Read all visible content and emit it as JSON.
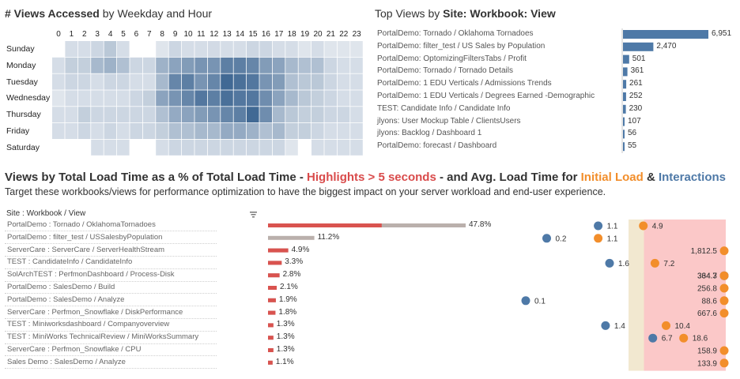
{
  "heatmap": {
    "title_bold": "# Views Accessed",
    "title_rest": " by Weekday and Hour",
    "hours": [
      "0",
      "1",
      "2",
      "3",
      "4",
      "5",
      "6",
      "7",
      "8",
      "9",
      "10",
      "11",
      "12",
      "13",
      "14",
      "15",
      "16",
      "17",
      "18",
      "19",
      "20",
      "21",
      "22",
      "23"
    ],
    "days": [
      "Sunday",
      "Monday",
      "Tuesday",
      "Wednesday",
      "Thursday",
      "Friday",
      "Saturday"
    ]
  },
  "topviews": {
    "title_plain": "Top Views by ",
    "title_bold": "Site: Workbook: View"
  },
  "bottom": {
    "title_part1": "Views by Total Load Time as a % of Total Load Time - ",
    "title_highlight": "Highlights > 5 seconds",
    "title_part2": " - and Avg. Load Time for ",
    "title_initial": "Initial Load",
    "title_amp": " & ",
    "title_interactions": "Interactions",
    "subtitle": "Target these workbooks/views for performance optimization to have the biggest impact on your server workload and end-user experience.",
    "column_header": "Site : Workbook / View",
    "sort_icon": "sort-icon"
  },
  "colors": {
    "heat_dark": "#2e5a8a",
    "top_bar": "#4e79a7",
    "red_bar": "#d9534f",
    "grey_bar": "#bab0ac",
    "initial_load": "#f28e2b",
    "interactions": "#4e79a7",
    "highlight_text": "#d94b4b",
    "red_band": "#fbc8c8",
    "tan_band": "#f2e8d0"
  },
  "chart_data": [
    {
      "type": "heatmap",
      "title": "# Views Accessed by Weekday and Hour",
      "x": [
        "0",
        "1",
        "2",
        "3",
        "4",
        "5",
        "6",
        "7",
        "8",
        "9",
        "10",
        "11",
        "12",
        "13",
        "14",
        "15",
        "16",
        "17",
        "18",
        "19",
        "20",
        "21",
        "22",
        "23"
      ],
      "y": [
        "Sunday",
        "Monday",
        "Tuesday",
        "Wednesday",
        "Thursday",
        "Friday",
        "Saturday"
      ],
      "values": [
        [
          0,
          10,
          10,
          15,
          25,
          10,
          0,
          0,
          5,
          15,
          10,
          10,
          12,
          10,
          10,
          15,
          15,
          10,
          10,
          5,
          10,
          5,
          5,
          5
        ],
        [
          10,
          20,
          20,
          35,
          40,
          30,
          15,
          15,
          40,
          50,
          55,
          60,
          60,
          75,
          75,
          70,
          55,
          50,
          35,
          30,
          30,
          15,
          10,
          10
        ],
        [
          10,
          15,
          15,
          10,
          15,
          15,
          10,
          10,
          35,
          70,
          75,
          60,
          70,
          90,
          85,
          80,
          60,
          55,
          30,
          25,
          25,
          15,
          10,
          10
        ],
        [
          5,
          10,
          10,
          10,
          10,
          10,
          15,
          20,
          50,
          60,
          70,
          80,
          75,
          85,
          80,
          80,
          65,
          50,
          35,
          25,
          20,
          15,
          10,
          10
        ],
        [
          10,
          10,
          20,
          15,
          15,
          15,
          15,
          15,
          30,
          45,
          50,
          55,
          60,
          70,
          75,
          90,
          65,
          35,
          25,
          20,
          20,
          15,
          15,
          10
        ],
        [
          10,
          10,
          15,
          10,
          15,
          10,
          15,
          15,
          20,
          30,
          30,
          35,
          35,
          45,
          45,
          40,
          30,
          35,
          20,
          20,
          15,
          10,
          10,
          10
        ],
        [
          0,
          0,
          0,
          10,
          10,
          10,
          0,
          0,
          10,
          15,
          15,
          15,
          15,
          15,
          15,
          15,
          15,
          15,
          5,
          0,
          10,
          10,
          10,
          10
        ]
      ]
    },
    {
      "type": "bar",
      "title": "Top Views by Site: Workbook: View",
      "categories": [
        "PortalDemo: Tornado / Oklahoma Tornadoes",
        "PortalDemo: filter_test / US Sales by Population",
        "PortalDemo: OptomizingFiltersTabs / Profit",
        "PortalDemo: Tornado / Tornado Details",
        "PortalDemo: 1 EDU Verticals / Admissions Trends",
        "PortalDemo: 1 EDU Verticals / Degrees Earned -Demographic",
        "TEST: Candidate Info / Candidate Info",
        "jlyons: User Mockup Table / ClientsUsers",
        "jlyons: Backlog / Dashboard 1",
        "PortalDemo: forecast / Dashboard"
      ],
      "values": [
        6951,
        2470,
        501,
        361,
        261,
        252,
        230,
        107,
        56,
        55
      ],
      "labels": [
        "6,951",
        "2,470",
        "501",
        "361",
        "261",
        "252",
        "230",
        "107",
        "56",
        "55"
      ]
    },
    {
      "type": "bar",
      "title": "Views by Total Load Time as a % of Total Load Time",
      "categories": [
        "PortalDemo : Tornado / OklahomaTornadoes",
        "PortalDemo : filter_test / USSalesbyPopulation",
        "ServerCare : ServerCare / ServerHealthStream",
        "TEST : CandidateInfo / CandidateInfo",
        "SolArchTEST : PerfmonDashboard / Process-Disk",
        "PortalDemo : SalesDemo / Build",
        "PortalDemo : SalesDemo / Analyze",
        "ServerCare : Perfmon_Snowflake / DiskPerformance",
        "TEST : Miniworksdashboard / Companyoverview",
        "TEST : MiniWorks TechnicalReview / MiniWorksSummary",
        "ServerCare : Perfmon_Snowflake / CPU",
        "Sales Demo : SalesDemo / Analyze"
      ],
      "values": [
        47.8,
        11.2,
        4.9,
        3.3,
        2.8,
        2.1,
        1.9,
        1.8,
        1.3,
        1.3,
        1.3,
        1.1
      ],
      "highlight_portion": [
        27.5,
        0,
        4.9,
        3.3,
        2.8,
        2.1,
        1.9,
        1.8,
        1.3,
        1.3,
        1.3,
        1.1
      ],
      "labels": [
        "47.8%",
        "11.2%",
        "4.9%",
        "3.3%",
        "2.8%",
        "2.1%",
        "1.9%",
        "1.8%",
        "1.3%",
        "1.3%",
        "1.3%",
        "1.1%"
      ]
    },
    {
      "type": "scatter",
      "title": "Avg. Load Time for Initial Load & Interactions",
      "series": [
        {
          "name": "Initial Load",
          "values": [
            4.9,
            1.1,
            1812.5,
            7.2,
            334.3,
            256.8,
            88.6,
            667.6,
            10.4,
            18.6,
            158.9,
            133.9
          ],
          "labels": [
            "4.9",
            "1.1",
            "1,812.5",
            "7.2",
            "334.3",
            "256.8",
            "88.6",
            "667.6",
            "10.4",
            "18.6",
            "158.9",
            "133.9"
          ]
        },
        {
          "name": "Interactions",
          "values": [
            1.1,
            0.2,
            null,
            1.6,
            364.7,
            null,
            0.1,
            null,
            1.4,
            6.7,
            null,
            null
          ],
          "labels": [
            "1.1",
            "0.2",
            "",
            "1.6",
            "364.7",
            "",
            "0.1",
            "",
            "1.4",
            "6.7",
            "",
            ""
          ]
        }
      ]
    }
  ]
}
